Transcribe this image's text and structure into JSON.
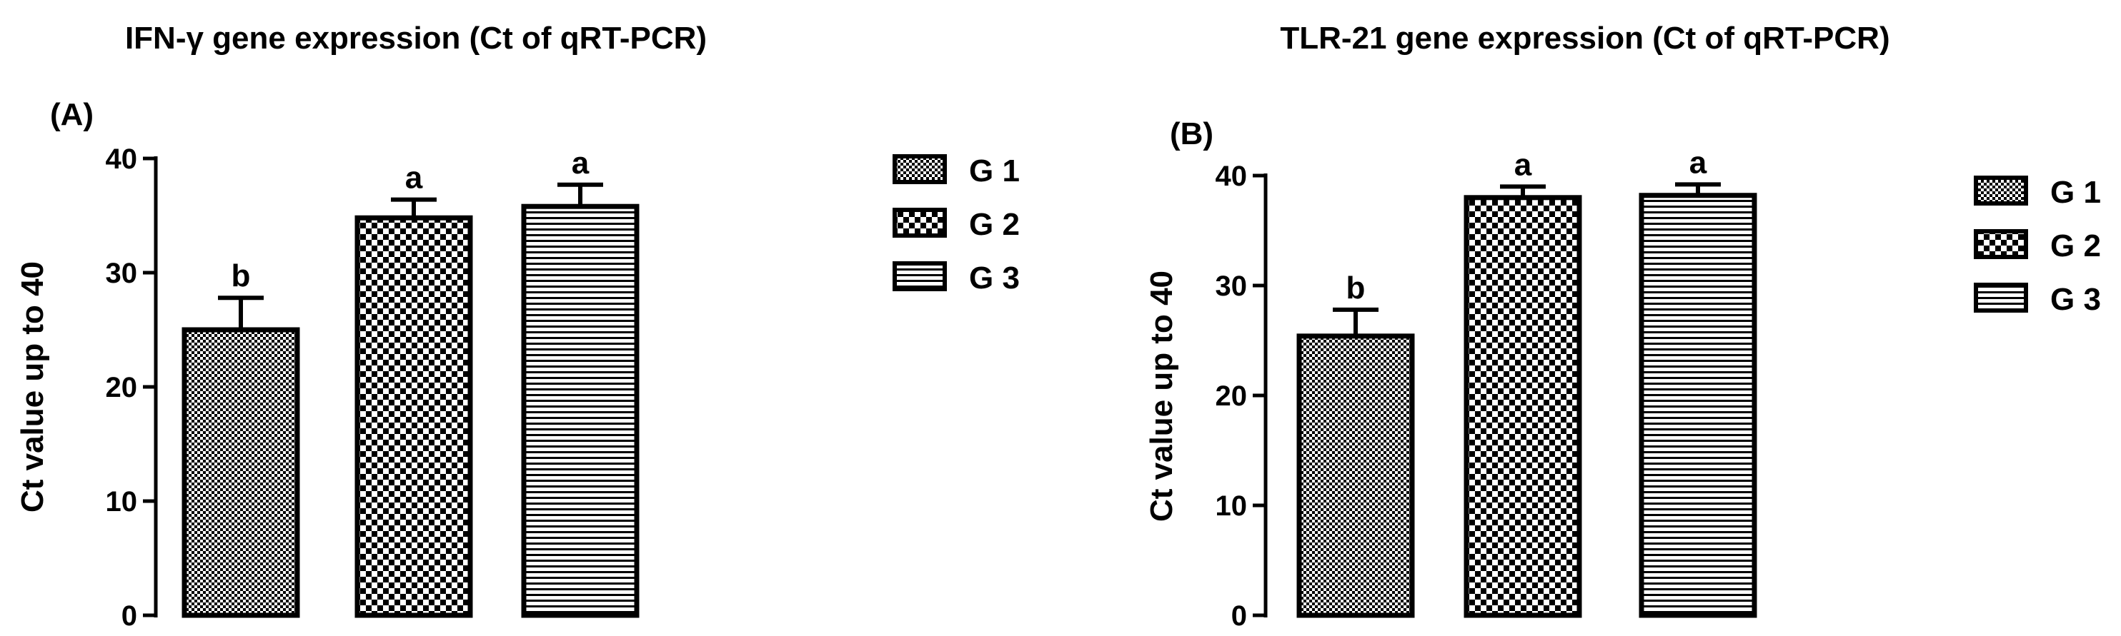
{
  "chart_data": [
    {
      "type": "bar",
      "panel_label": "(A)",
      "title": "IFN-γ gene expression (Ct of qRT-PCR)",
      "xlabel": "",
      "ylabel": "Ct value up to 40",
      "ylim": [
        0,
        40
      ],
      "yticks": [
        0,
        10,
        20,
        30,
        40
      ],
      "grid": false,
      "legend_position": "right",
      "categories": [
        "G 1",
        "G 2",
        "G 3"
      ],
      "values": [
        25.0,
        34.8,
        35.8
      ],
      "errors": [
        2.8,
        1.6,
        1.9
      ],
      "significance": [
        "b",
        "a",
        "a"
      ],
      "patterns": [
        "fine-check",
        "coarse-check",
        "horizontal-lines"
      ]
    },
    {
      "type": "bar",
      "panel_label": "(B)",
      "title": "TLR-21 gene expression (Ct of qRT-PCR)",
      "xlabel": "",
      "ylabel": "Ct value up to 40",
      "ylim": [
        0,
        40
      ],
      "yticks": [
        0,
        10,
        20,
        30,
        40
      ],
      "grid": false,
      "legend_position": "right",
      "categories": [
        "G 1",
        "G 2",
        "G 3"
      ],
      "values": [
        25.4,
        38.0,
        38.2
      ],
      "errors": [
        2.4,
        1.0,
        1.0
      ],
      "significance": [
        "b",
        "a",
        "a"
      ],
      "patterns": [
        "fine-check",
        "coarse-check",
        "horizontal-lines"
      ]
    }
  ]
}
